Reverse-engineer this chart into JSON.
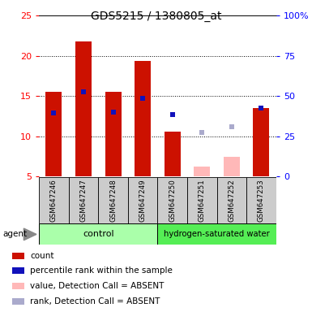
{
  "title": "GDS5215 / 1380805_at",
  "samples": [
    "GSM647246",
    "GSM647247",
    "GSM647248",
    "GSM647249",
    "GSM647250",
    "GSM647251",
    "GSM647252",
    "GSM647253"
  ],
  "red_bar_values": [
    15.5,
    21.8,
    15.5,
    19.4,
    10.6,
    null,
    null,
    13.5
  ],
  "blue_square_values": [
    12.9,
    15.5,
    13.0,
    14.7,
    12.7,
    null,
    null,
    13.5
  ],
  "absent_value_bars": [
    null,
    null,
    null,
    null,
    null,
    6.2,
    7.4,
    null
  ],
  "absent_rank_squares": [
    null,
    null,
    null,
    null,
    null,
    10.5,
    11.2,
    null
  ],
  "ylim_left": [
    5,
    25
  ],
  "yticks_left": [
    5,
    10,
    15,
    20,
    25
  ],
  "ytick_labels_right": [
    "0",
    "25",
    "50",
    "75",
    "100%"
  ],
  "control_label": "control",
  "treatment_label": "hydrogen-saturated water",
  "agent_label": "agent",
  "bar_color": "#CC1100",
  "blue_color": "#1111BB",
  "pink_bar_color": "#FFB8B8",
  "light_blue_color": "#AAAACC",
  "control_bg": "#AAFFAA",
  "treatment_bg": "#55EE55",
  "axis_bg": "#CCCCCC",
  "legend_items": [
    "count",
    "percentile rank within the sample",
    "value, Detection Call = ABSENT",
    "rank, Detection Call = ABSENT"
  ],
  "legend_colors": [
    "#CC1100",
    "#1111BB",
    "#FFB8B8",
    "#AAAACC"
  ]
}
